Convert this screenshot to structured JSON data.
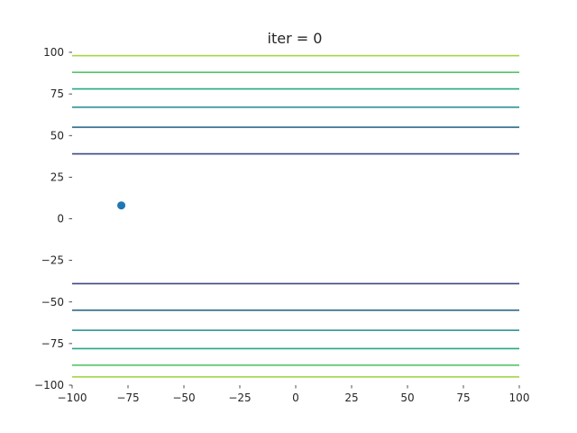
{
  "chart_data": {
    "type": "line",
    "title": "iter = 0",
    "xlabel": "",
    "ylabel": "",
    "xlim": [
      -100,
      100
    ],
    "ylim": [
      -100,
      100
    ],
    "grid": false,
    "xticks": [
      {
        "value": -100,
        "label": "−100"
      },
      {
        "value": -75,
        "label": "−75"
      },
      {
        "value": -50,
        "label": "−50"
      },
      {
        "value": -25,
        "label": "−25"
      },
      {
        "value": 0,
        "label": "0"
      },
      {
        "value": 25,
        "label": "25"
      },
      {
        "value": 50,
        "label": "50"
      },
      {
        "value": 75,
        "label": "75"
      },
      {
        "value": 100,
        "label": "100"
      }
    ],
    "yticks": [
      {
        "value": 100,
        "label": "100"
      },
      {
        "value": 75,
        "label": "75"
      },
      {
        "value": 50,
        "label": "50"
      },
      {
        "value": 25,
        "label": "25"
      },
      {
        "value": 0,
        "label": "0"
      },
      {
        "value": -25,
        "label": "−25"
      },
      {
        "value": -50,
        "label": "−50"
      },
      {
        "value": -75,
        "label": "−75"
      },
      {
        "value": -100,
        "label": "−100"
      }
    ],
    "contours": [
      {
        "y": 98,
        "color": "#a5d845"
      },
      {
        "y": 88,
        "color": "#54c567"
      },
      {
        "y": 78,
        "color": "#24a884"
      },
      {
        "y": 67,
        "color": "#21898c"
      },
      {
        "y": 55,
        "color": "#2d6a8e"
      },
      {
        "y": 39,
        "color": "#3d4786"
      },
      {
        "y": -39,
        "color": "#3d4786"
      },
      {
        "y": -55,
        "color": "#2d6a8e"
      },
      {
        "y": -67,
        "color": "#21898c"
      },
      {
        "y": -78,
        "color": "#24a884"
      },
      {
        "y": -88,
        "color": "#54c567"
      },
      {
        "y": -95,
        "color": "#a5d845"
      }
    ],
    "points": [
      {
        "x": -78,
        "y": 8,
        "color": "#1f77b4"
      }
    ]
  }
}
